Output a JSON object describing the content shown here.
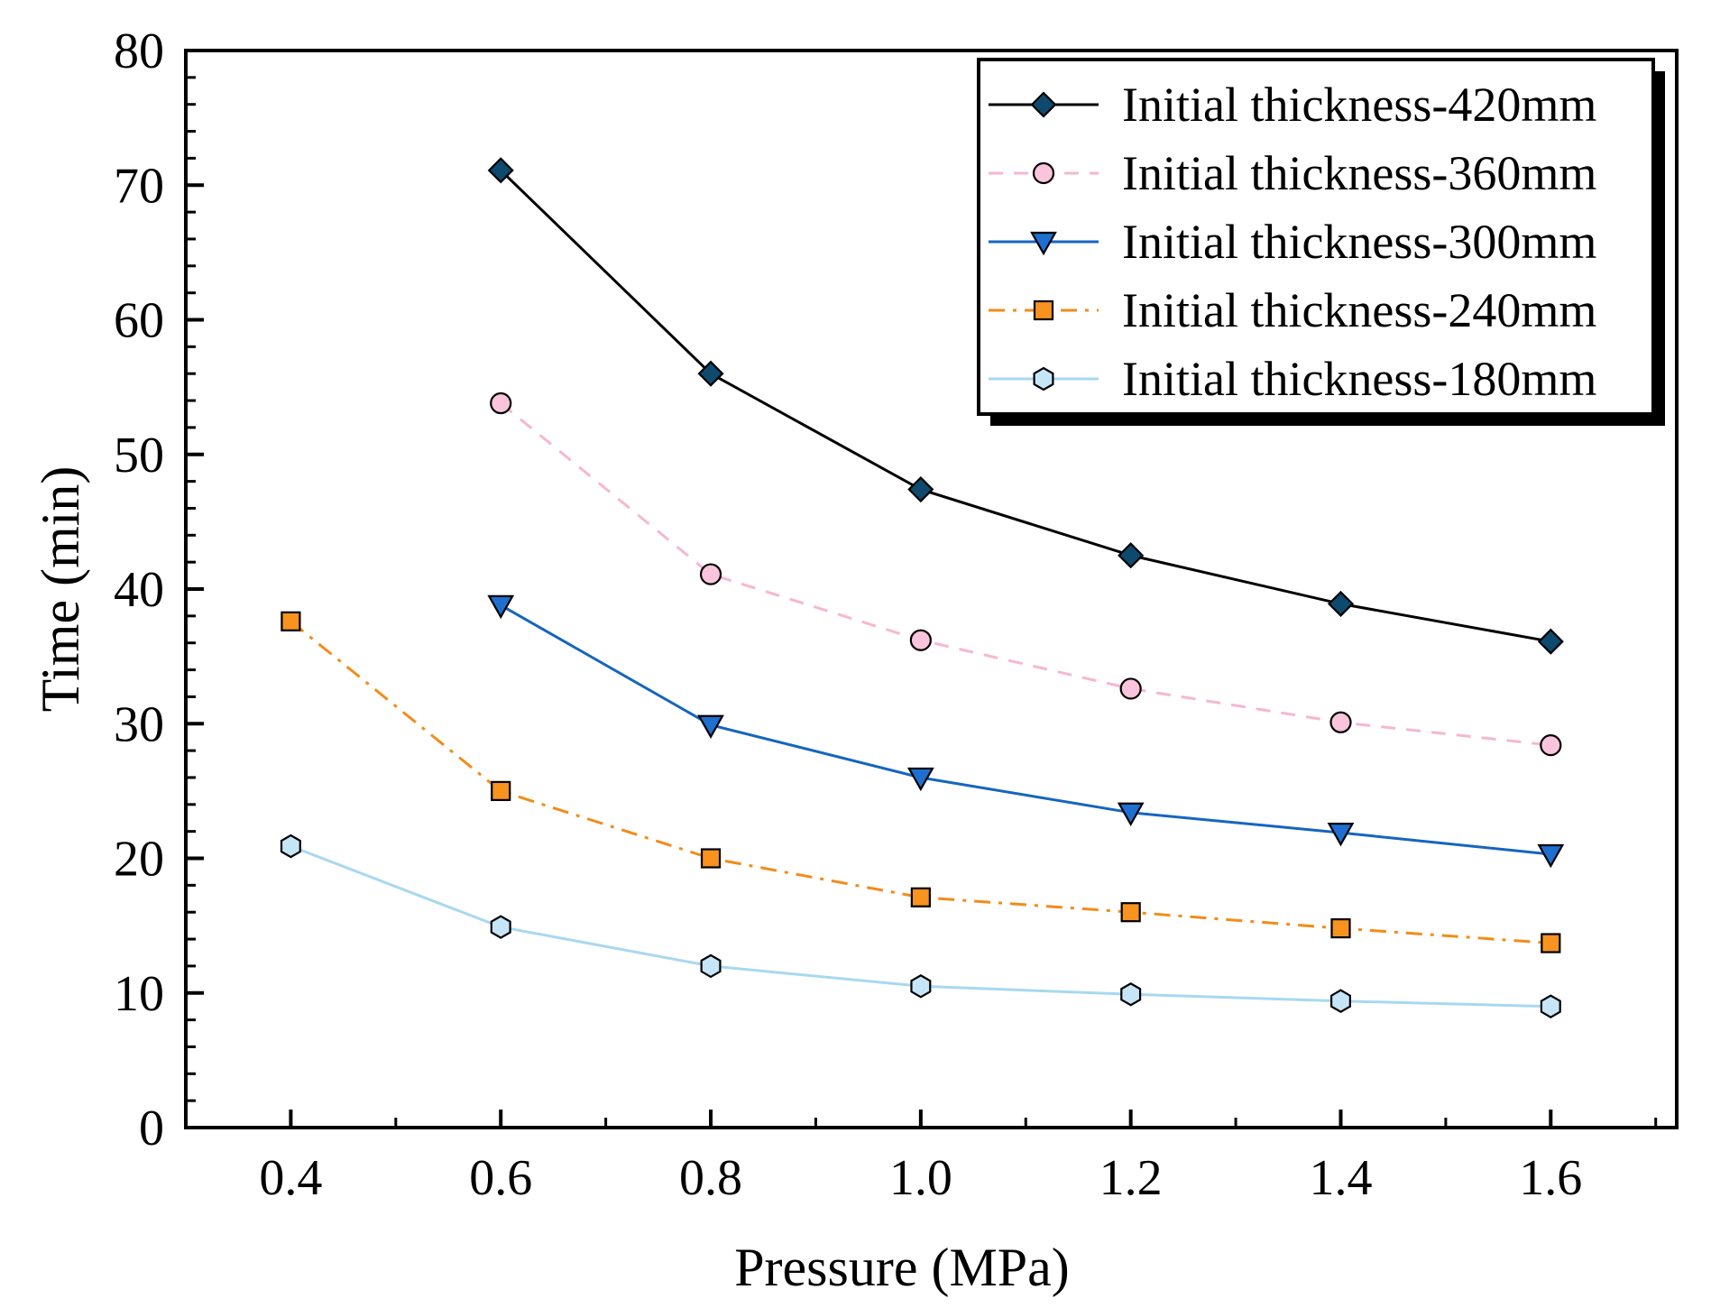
{
  "chart_data": {
    "type": "line",
    "title": "",
    "xlabel": "Pressure (MPa)",
    "ylabel": "Time (min)",
    "xlim": [
      0.3,
      1.72
    ],
    "ylim": [
      0,
      80
    ],
    "xticks": [
      0.4,
      0.6,
      0.8,
      1.0,
      1.2,
      1.4,
      1.6
    ],
    "xtick_labels": [
      "0.4",
      "0.6",
      "0.8",
      "1.0",
      "1.2",
      "1.4",
      "1.6"
    ],
    "yticks": [
      0,
      10,
      20,
      30,
      40,
      50,
      60,
      70,
      80
    ],
    "ytick_labels": [
      "0",
      "10",
      "20",
      "30",
      "40",
      "50",
      "60",
      "70",
      "80"
    ],
    "grid": false,
    "legend_position": "top-right",
    "series": [
      {
        "name": "Initial thickness-420mm",
        "x": [
          0.6,
          0.8,
          1.0,
          1.2,
          1.4,
          1.6
        ],
        "values": [
          71.1,
          56.0,
          47.4,
          42.5,
          38.9,
          36.1
        ],
        "line_color": "#000000",
        "marker_fill": "#0d4a6e",
        "marker": "diamond",
        "dash": "solid"
      },
      {
        "name": "Initial thickness-360mm",
        "x": [
          0.6,
          0.8,
          1.0,
          1.2,
          1.4,
          1.6
        ],
        "values": [
          53.8,
          41.1,
          36.2,
          32.6,
          30.1,
          28.4
        ],
        "line_color": "#f7b6d2",
        "marker_fill": "#f9c4dc",
        "marker": "circle",
        "dash": "dash"
      },
      {
        "name": "Initial thickness-300mm",
        "x": [
          0.6,
          0.8,
          1.0,
          1.2,
          1.4,
          1.6
        ],
        "values": [
          38.8,
          29.9,
          26.0,
          23.4,
          21.9,
          20.3
        ],
        "line_color": "#1565c0",
        "marker_fill": "#1f6fd1",
        "marker": "triangle-down",
        "dash": "solid"
      },
      {
        "name": "Initial thickness-240mm",
        "x": [
          0.4,
          0.6,
          0.8,
          1.0,
          1.2,
          1.4,
          1.6
        ],
        "values": [
          37.6,
          25.0,
          20.0,
          17.1,
          16.0,
          14.8,
          13.7
        ],
        "line_color": "#f28c1a",
        "marker_fill": "#f7931e",
        "marker": "square",
        "dash": "dashdot"
      },
      {
        "name": "Initial thickness-180mm",
        "x": [
          0.4,
          0.6,
          0.8,
          1.0,
          1.2,
          1.4,
          1.6
        ],
        "values": [
          20.9,
          14.9,
          12.0,
          10.5,
          9.9,
          9.4,
          9.0
        ],
        "line_color": "#a8d8f0",
        "marker_fill": "#c6e6f8",
        "marker": "hexagon",
        "dash": "solid"
      }
    ]
  }
}
